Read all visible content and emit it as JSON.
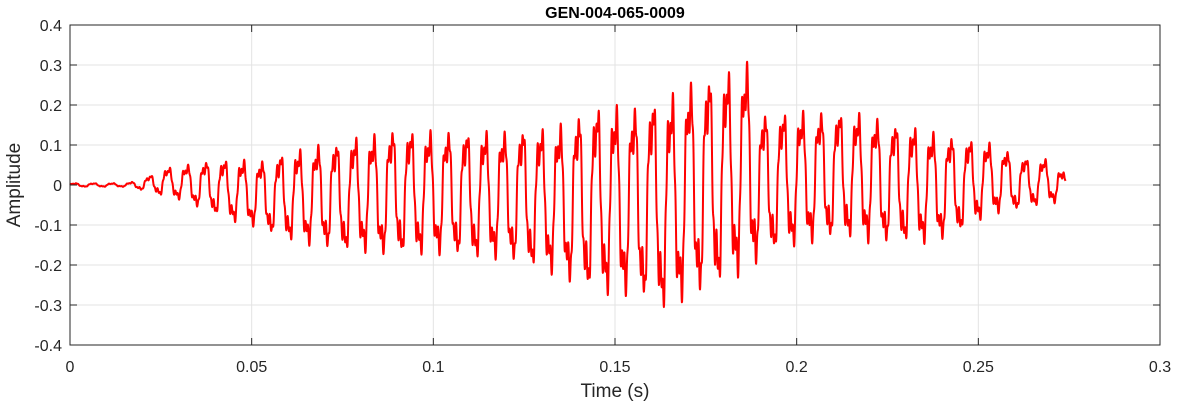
{
  "chart_data": {
    "type": "line",
    "title": "GEN-004-065-0009",
    "xlabel": "Time (s)",
    "ylabel": "Amplitude",
    "xlim": [
      0,
      0.3
    ],
    "ylim": [
      -0.4,
      0.4
    ],
    "xticks": [
      0,
      0.05,
      0.1,
      0.15,
      0.2,
      0.25,
      0.3
    ],
    "xtick_labels": [
      "0",
      "0.05",
      "0.1",
      "0.15",
      "0.2",
      "0.25",
      "0.3"
    ],
    "yticks": [
      -0.4,
      -0.3,
      -0.2,
      -0.1,
      0,
      0.1,
      0.2,
      0.3,
      0.4
    ],
    "ytick_labels": [
      "-0.4",
      "-0.3",
      "-0.2",
      "-0.1",
      "0",
      "0.1",
      "0.2",
      "0.3",
      "0.4"
    ],
    "grid": true,
    "series": [
      {
        "color": "#ff0000",
        "x": [
          0,
          0.005,
          0.01,
          0.015,
          0.018,
          0.02,
          0.022,
          0.025,
          0.03,
          0.035,
          0.04,
          0.045,
          0.05,
          0.055,
          0.06,
          0.065,
          0.07,
          0.075,
          0.08,
          0.085,
          0.09,
          0.095,
          0.1,
          0.105,
          0.11,
          0.115,
          0.12,
          0.125,
          0.13,
          0.135,
          0.14,
          0.145,
          0.148,
          0.15,
          0.155,
          0.16,
          0.165,
          0.17,
          0.175,
          0.18,
          0.185,
          0.188,
          0.19,
          0.195,
          0.2,
          0.205,
          0.21,
          0.215,
          0.22,
          0.225,
          0.23,
          0.235,
          0.24,
          0.245,
          0.25,
          0.255,
          0.26,
          0.265,
          0.27,
          0.274
        ],
        "envelope_max": [
          0.005,
          0.005,
          0.005,
          0.005,
          0.01,
          0.02,
          0.025,
          0.045,
          0.05,
          0.06,
          0.07,
          0.07,
          0.07,
          0.07,
          0.1,
          0.1,
          0.12,
          0.12,
          0.14,
          0.14,
          0.16,
          0.15,
          0.15,
          0.15,
          0.15,
          0.15,
          0.15,
          0.16,
          0.16,
          0.17,
          0.2,
          0.22,
          0.23,
          0.22,
          0.22,
          0.24,
          0.25,
          0.28,
          0.3,
          0.31,
          0.32,
          0.345,
          0.2,
          0.2,
          0.2,
          0.2,
          0.2,
          0.2,
          0.19,
          0.17,
          0.17,
          0.15,
          0.14,
          0.13,
          0.12,
          0.11,
          0.08,
          0.07,
          0.07,
          0.03
        ],
        "envelope_min": [
          -0.005,
          -0.005,
          -0.005,
          -0.005,
          -0.01,
          -0.015,
          -0.02,
          -0.03,
          -0.04,
          -0.06,
          -0.08,
          -0.1,
          -0.11,
          -0.13,
          -0.15,
          -0.16,
          -0.17,
          -0.18,
          -0.18,
          -0.19,
          -0.19,
          -0.19,
          -0.19,
          -0.19,
          -0.2,
          -0.2,
          -0.2,
          -0.22,
          -0.23,
          -0.25,
          -0.28,
          -0.29,
          -0.3,
          -0.3,
          -0.3,
          -0.32,
          -0.35,
          -0.3,
          -0.3,
          -0.27,
          -0.25,
          -0.24,
          -0.2,
          -0.18,
          -0.17,
          -0.16,
          -0.15,
          -0.15,
          -0.16,
          -0.16,
          -0.16,
          -0.16,
          -0.15,
          -0.13,
          -0.1,
          -0.08,
          -0.07,
          -0.06,
          -0.05,
          -0.05
        ]
      }
    ]
  }
}
